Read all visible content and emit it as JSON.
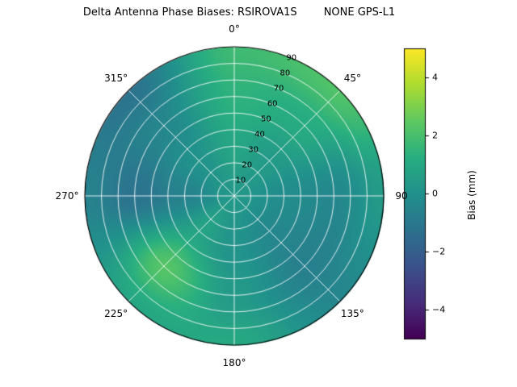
{
  "colors": {
    "background": "#ffffff",
    "polar_grid": "#ffffff",
    "outline": "#000000",
    "text": "#000000"
  },
  "chart_data": {
    "type": "heatmap",
    "projection": "polar-skyplot",
    "title": "Delta Antenna Phase Biases: RSIROVA1S        NONE GPS-L1",
    "azimuth_labels": [
      "0°",
      "45°",
      "90",
      "135°",
      "180°",
      "225°",
      "270°",
      "315°"
    ],
    "radial_tick_labels": [
      "10",
      "20",
      "30",
      "40",
      "50",
      "60",
      "70",
      "80",
      "90"
    ],
    "radial_tick_values": [
      10,
      20,
      30,
      40,
      50,
      60,
      70,
      80,
      90
    ],
    "radial_range": [
      0,
      90
    ],
    "radial_label_angle_deg": 22.5,
    "grid_on": true,
    "colorbar": {
      "label": "Bias (mm)",
      "tick_labels": [
        "−4",
        "−2",
        "0",
        "2",
        "4"
      ],
      "tick_values": [
        -4,
        -2,
        0,
        2,
        4
      ],
      "vmin": -5,
      "vmax": 5,
      "colormap": "viridis",
      "position": "right"
    },
    "grid": {
      "azimuth_deg": [
        0,
        45,
        90,
        135,
        180,
        225,
        270,
        315
      ],
      "radius_deg": [
        0,
        30,
        60,
        90
      ],
      "bias_mm": [
        [
          0.3,
          0.3,
          0.3,
          0.3,
          0.3,
          0.3,
          0.3,
          0.3
        ],
        [
          0.9,
          0.4,
          -0.2,
          -0.4,
          0.1,
          0.8,
          -0.6,
          0.1
        ],
        [
          1.4,
          1.1,
          -0.4,
          -0.7,
          0.4,
          2.3,
          -1.2,
          -0.4
        ],
        [
          1.8,
          2.2,
          0.4,
          -0.4,
          1.0,
          0.9,
          -0.6,
          -1.2
        ]
      ]
    },
    "colormap_stops": [
      [
        0.0,
        68,
        1,
        84
      ],
      [
        0.125,
        71,
        45,
        123
      ],
      [
        0.25,
        59,
        82,
        139
      ],
      [
        0.375,
        44,
        114,
        142
      ],
      [
        0.5,
        33,
        145,
        140
      ],
      [
        0.625,
        40,
        174,
        128
      ],
      [
        0.75,
        94,
        201,
        98
      ],
      [
        0.875,
        173,
        220,
        48
      ],
      [
        1.0,
        253,
        231,
        37
      ]
    ]
  }
}
